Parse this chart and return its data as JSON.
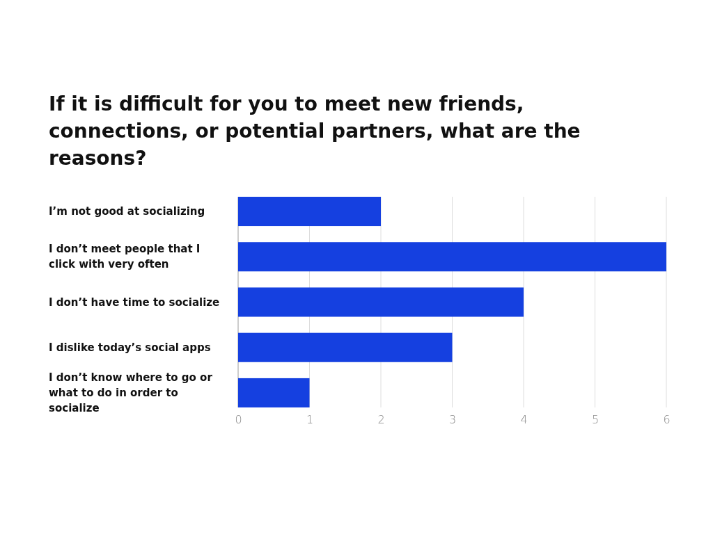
{
  "chart_data": {
    "type": "bar",
    "orientation": "horizontal",
    "title": "If it is difficult for you to meet new friends, connections, or potential partners, what are the reasons?",
    "categories": [
      "I’m not good at socializing",
      "I don’t meet people that I click with very often",
      "I don’t have time to socialize",
      "I dislike today’s social apps",
      "I don’t know where to go or what to do in order to socialize"
    ],
    "values": [
      2,
      6,
      4,
      3,
      1
    ],
    "color": "#1540e0",
    "xlim": [
      0,
      6
    ],
    "xticks": [
      0,
      1,
      2,
      3,
      4,
      5,
      6
    ],
    "grid": "x"
  }
}
